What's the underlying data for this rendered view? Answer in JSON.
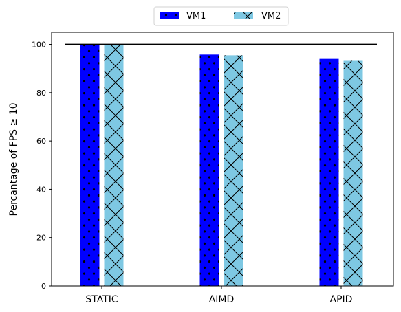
{
  "chart_data": {
    "type": "bar",
    "categories": [
      "STATIC",
      "AIMD",
      "APID"
    ],
    "series": [
      {
        "name": "VM1",
        "values": [
          100,
          95.8,
          94.0
        ],
        "color": "#0000ff",
        "hatch": "dots"
      },
      {
        "name": "VM2",
        "values": [
          100,
          95.5,
          93.2
        ],
        "color": "#7ec8e3",
        "hatch": "cross"
      }
    ],
    "reference_line": 100,
    "ylabel": "Percantage of FPS  ≥ 10",
    "xlabel": "",
    "ylim": [
      0,
      105
    ],
    "yticks": [
      0,
      20,
      40,
      60,
      80,
      100
    ],
    "legend_position": "top-center",
    "grid": false
  }
}
